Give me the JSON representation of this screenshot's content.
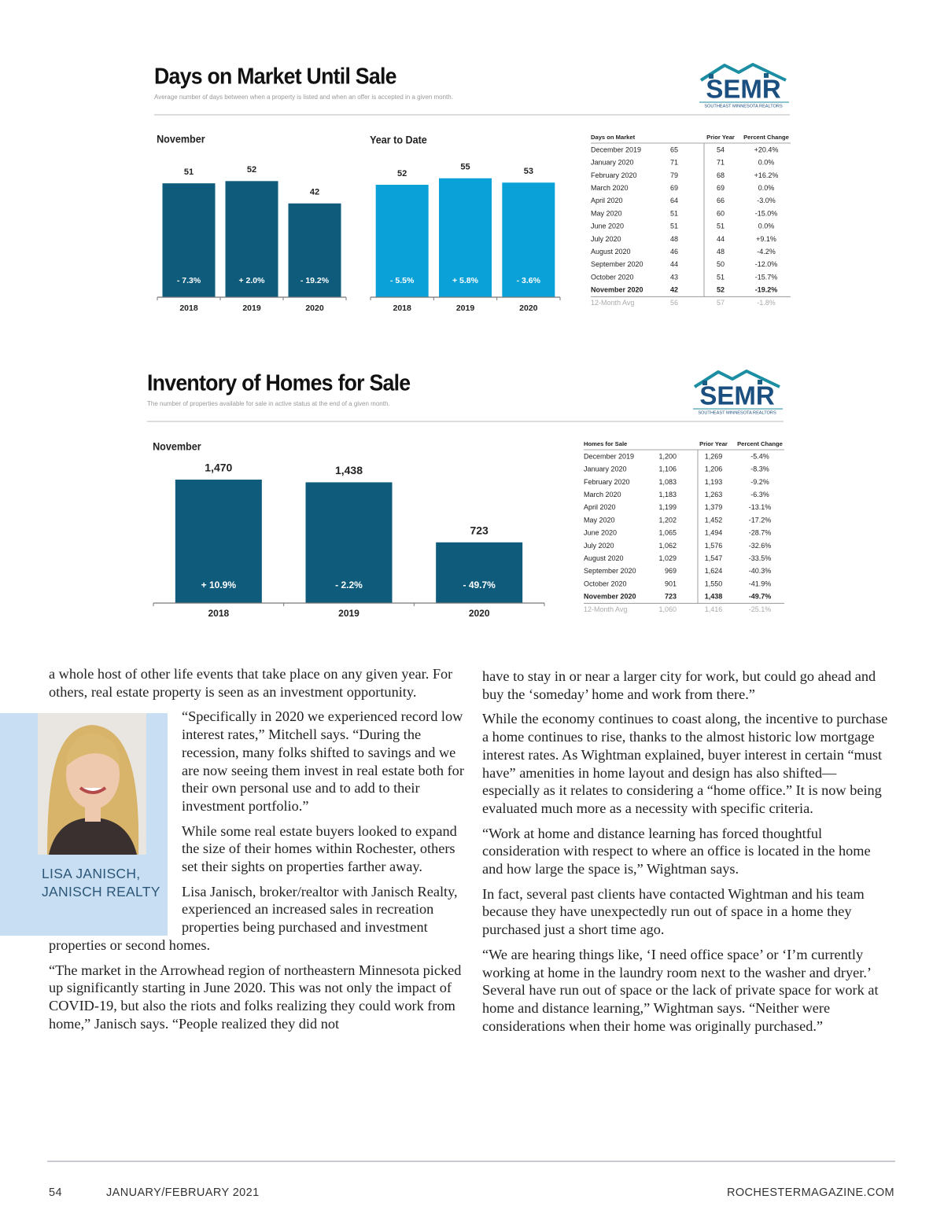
{
  "dom": {
    "title": "Days on Market Until Sale",
    "subtitle": "Average number of days between when a property is listed and when an offer is accepted in a given month.",
    "logo": {
      "text": "SEMR",
      "tagline": "SOUTHEAST MINNESOTA REALTORS"
    },
    "charts": [
      {
        "type": "bar",
        "label": "November",
        "color": "#0e5b7c",
        "categories": [
          "2018",
          "2019",
          "2020"
        ],
        "values": [
          51,
          52,
          42
        ],
        "change_labels": [
          "- 7.3%",
          "+ 2.0%",
          "- 19.2%"
        ]
      },
      {
        "type": "bar",
        "label": "Year to Date",
        "color": "#0aa1d8",
        "categories": [
          "2018",
          "2019",
          "2020"
        ],
        "values": [
          52,
          55,
          53
        ],
        "change_labels": [
          "- 5.5%",
          "+ 5.8%",
          "- 3.6%"
        ]
      }
    ],
    "table": {
      "header": [
        "Days on Market",
        "Prior Year",
        "Percent Change"
      ],
      "rows": [
        [
          "December 2019",
          "65",
          "54",
          "+20.4%"
        ],
        [
          "January 2020",
          "71",
          "71",
          "0.0%"
        ],
        [
          "February 2020",
          "79",
          "68",
          "+16.2%"
        ],
        [
          "March 2020",
          "69",
          "69",
          "0.0%"
        ],
        [
          "April 2020",
          "64",
          "66",
          "-3.0%"
        ],
        [
          "May 2020",
          "51",
          "60",
          "-15.0%"
        ],
        [
          "June 2020",
          "51",
          "51",
          "0.0%"
        ],
        [
          "July 2020",
          "48",
          "44",
          "+9.1%"
        ],
        [
          "August 2020",
          "46",
          "48",
          "-4.2%"
        ],
        [
          "September 2020",
          "44",
          "50",
          "-12.0%"
        ],
        [
          "October 2020",
          "43",
          "51",
          "-15.7%"
        ],
        [
          "November 2020",
          "42",
          "52",
          "-19.2%"
        ],
        [
          "12-Month Avg",
          "56",
          "57",
          "-1.8%"
        ]
      ]
    }
  },
  "inventory": {
    "title": "Inventory of Homes for Sale",
    "subtitle": "The number of properties available for sale in active status at the end of a given month.",
    "logo": {
      "text": "SEMR",
      "tagline": "SOUTHEAST MINNESOTA REALTORS"
    },
    "charts": [
      {
        "type": "bar",
        "label": "November",
        "color": "#0e5b7c",
        "categories": [
          "2018",
          "2019",
          "2020"
        ],
        "values": [
          1470,
          1438,
          723
        ],
        "value_labels": [
          "1,470",
          "1,438",
          "723"
        ],
        "change_labels": [
          "+ 10.9%",
          "- 2.2%",
          "- 49.7%"
        ]
      }
    ],
    "table": {
      "header": [
        "Homes for Sale",
        "Prior Year",
        "Percent Change"
      ],
      "rows": [
        [
          "December 2019",
          "1,200",
          "1,269",
          "-5.4%"
        ],
        [
          "January 2020",
          "1,106",
          "1,206",
          "-8.3%"
        ],
        [
          "February 2020",
          "1,083",
          "1,193",
          "-9.2%"
        ],
        [
          "March 2020",
          "1,183",
          "1,263",
          "-6.3%"
        ],
        [
          "April 2020",
          "1,199",
          "1,379",
          "-13.1%"
        ],
        [
          "May 2020",
          "1,202",
          "1,452",
          "-17.2%"
        ],
        [
          "June 2020",
          "1,065",
          "1,494",
          "-28.7%"
        ],
        [
          "July 2020",
          "1,062",
          "1,576",
          "-32.6%"
        ],
        [
          "August 2020",
          "1,029",
          "1,547",
          "-33.5%"
        ],
        [
          "September 2020",
          "969",
          "1,624",
          "-40.3%"
        ],
        [
          "October 2020",
          "901",
          "1,550",
          "-41.9%"
        ],
        [
          "November 2020",
          "723",
          "1,438",
          "-49.7%"
        ],
        [
          "12-Month Avg",
          "1,060",
          "1,416",
          "-25.1%"
        ]
      ]
    }
  },
  "article": {
    "left": [
      "a whole host of other life events that take place on any given year. For others, real estate property is seen as an investment opportunity.",
      "“Specifically in 2020 we experienced record low interest rates,” Mitchell says. “During the recession, many folks shifted to savings and we are now seeing them invest in real estate both for their own personal use and to add to their investment portfolio.”",
      "While some real estate buyers looked to expand the size of their homes within Rochester, others set their sights on properties farther away.",
      "Lisa Janisch, broker/realtor with Janisch Realty, experienced an increased sales in recreation properties being purchased and investment properties or second homes.",
      "“The market in the Arrowhead region of northeastern Minnesota picked up significantly starting in June 2020. This was not only the impact of COVID-19, but also the riots and folks realizing they could work from home,” Janisch says. “People realized they did not"
    ],
    "right": [
      "have to stay in or near a larger city for work, but could go ahead and buy the ‘someday’ home and work from there.”",
      "While the economy continues to coast along, the incentive to purchase a home continues to rise, thanks to the almost historic low mortgage interest rates. As Wightman explained, buyer interest in certain “must have” amenities in home layout and design has also shifted—especially as it relates to considering a “home office.” It is now being evaluated much more as a necessity with specific criteria.",
      "“Work at home and distance learning has forced thoughtful consideration with respect to where an office is located in the home and how large the space is,” Wightman says.",
      "In fact, several past clients have contacted Wightman and his team because they have unexpectedly run out of space in a home they purchased just a short time ago.",
      "“We are hearing things like, ‘I need office space’ or ‘I’m currently working at home in the laundry room next to the washer and dryer.’ Several have run out of space or the lack of private space for work at home and distance learning,” Wightman says. “Neither were considerations when their home was originally purchased.”"
    ],
    "caption": [
      "LISA JANISCH,",
      "JANISCH REALTY"
    ]
  },
  "footer": {
    "page": "54",
    "issue": "JANUARY/FEBRUARY 2021",
    "site": "ROCHESTERMAGAZINE.COM"
  }
}
